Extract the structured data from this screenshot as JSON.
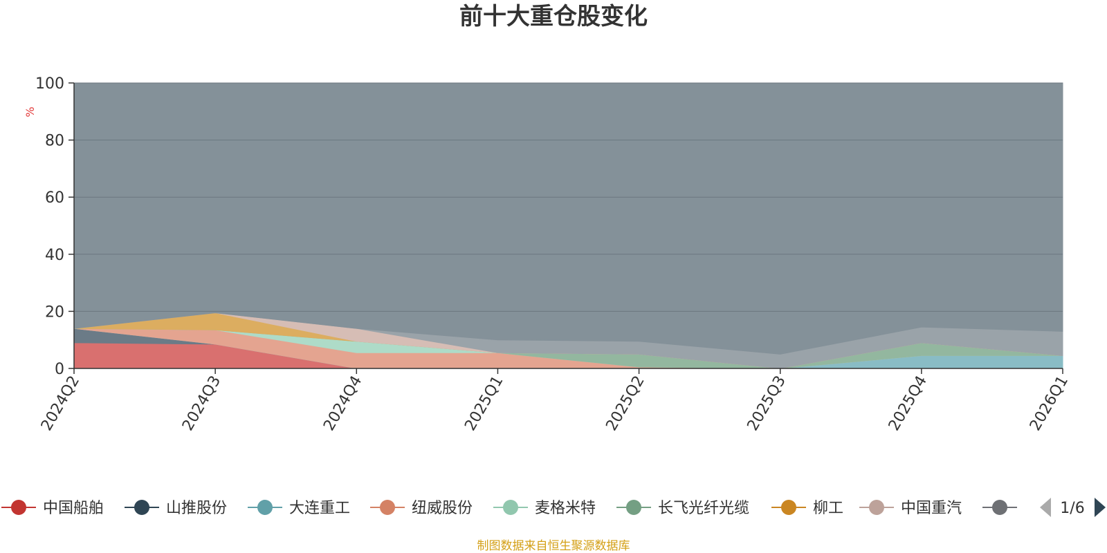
{
  "chart_data": {
    "type": "area",
    "stacked": true,
    "title": "前十大重仓股变化",
    "ylabel": "%",
    "ylim": [
      0,
      100
    ],
    "yticks": [
      "0",
      "20",
      "40",
      "60",
      "80",
      "100"
    ],
    "categories": [
      "2024Q2",
      "2024Q3",
      "2024Q4",
      "2025Q1",
      "2025Q2",
      "2025Q3",
      "2025Q4",
      "2026Q1"
    ],
    "grid": true,
    "legend_position": "bottom",
    "series": [
      {
        "name": "中国船舶",
        "color": "#d9706f",
        "values": [
          9,
          8.5,
          0,
          0,
          0,
          0,
          0,
          0
        ]
      },
      {
        "name": "山推股份",
        "color": "#6b7b87",
        "values": [
          5,
          0,
          0,
          0,
          0,
          0,
          0,
          0
        ]
      },
      {
        "name": "大连重工",
        "color": "#89bcc5",
        "values": [
          0,
          0,
          0,
          0,
          0,
          0,
          4.5,
          4.5
        ]
      },
      {
        "name": "纽威股份",
        "color": "#e4a490",
        "values": [
          0,
          5,
          5.5,
          5.5,
          0.5,
          0,
          0,
          0
        ]
      },
      {
        "name": "麦格米特",
        "color": "#aedbc8",
        "values": [
          0,
          0,
          4,
          0,
          0,
          0,
          0,
          0
        ]
      },
      {
        "name": "长飞光纤光缆",
        "color": "#93b79f",
        "values": [
          0,
          0,
          0,
          0,
          4.5,
          0,
          4.5,
          0
        ]
      },
      {
        "name": "柳工",
        "color": "#dcad60",
        "values": [
          0,
          6,
          0,
          0,
          0,
          0,
          0,
          0
        ]
      },
      {
        "name": "中国重汽",
        "color": "#d6bdb5",
        "values": [
          0,
          0,
          4.5,
          0,
          0,
          0,
          0,
          0
        ]
      },
      {
        "name": "",
        "color": "#9aa3a9",
        "values": [
          0,
          0,
          0,
          4.5,
          4.5,
          5,
          5.5,
          8.5
        ]
      }
    ],
    "remainder_color": "#849199",
    "legend_page": "1/6"
  },
  "source_note": "制图数据来自恒生聚源数据库"
}
